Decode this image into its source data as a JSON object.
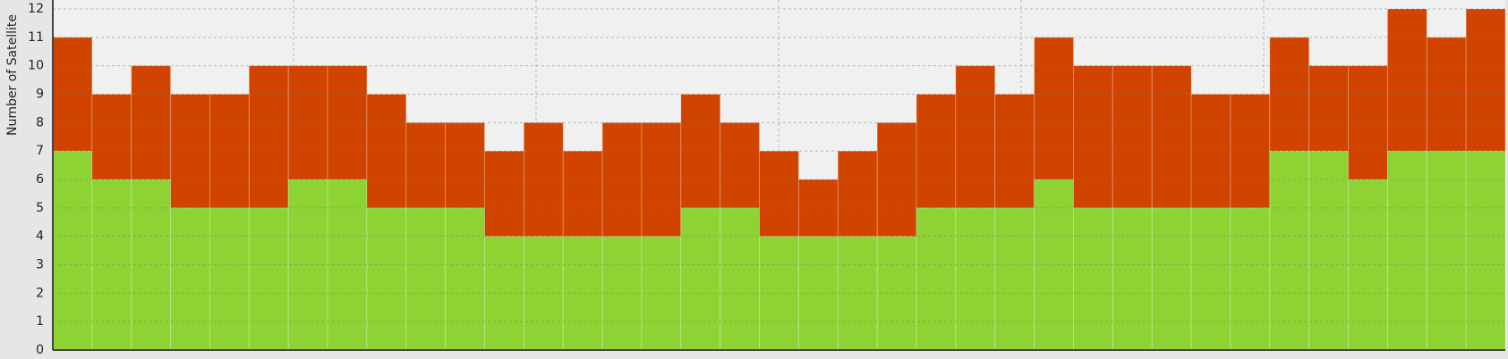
{
  "chart_data": {
    "type": "stacked_bar",
    "y_label": "Number of Satellite",
    "categories": [
      null,
      null,
      null,
      null,
      null,
      null,
      null,
      null,
      null,
      null,
      null,
      null,
      null,
      null,
      null,
      null,
      null,
      null,
      null,
      null,
      null,
      null,
      null,
      null,
      null,
      null,
      null,
      null,
      null,
      null,
      null,
      null,
      null,
      null,
      null,
      null,
      null
    ],
    "series": [
      {
        "color": "#8ed334",
        "values": [
          7,
          6,
          6,
          5,
          5,
          5,
          6,
          6,
          5,
          5,
          5,
          4,
          4,
          4,
          4,
          4,
          5,
          5,
          4,
          4,
          4,
          4,
          5,
          5,
          5,
          6,
          5,
          5,
          5,
          5,
          5,
          7,
          7,
          6,
          7,
          7,
          7
        ]
      },
      {
        "color": "#d04400",
        "values": [
          4,
          3,
          4,
          4,
          4,
          5,
          4,
          4,
          4,
          3,
          3,
          3,
          4,
          3,
          4,
          4,
          4,
          3,
          3,
          2,
          3,
          4,
          4,
          5,
          4,
          5,
          5,
          5,
          5,
          4,
          4,
          4,
          3,
          4,
          5,
          4,
          5
        ]
      }
    ],
    "ylim": [
      0,
      12
    ],
    "yticks": [
      0,
      1,
      2,
      3,
      4,
      5,
      6,
      7,
      8,
      9,
      10,
      11,
      12
    ],
    "grid": true
  }
}
